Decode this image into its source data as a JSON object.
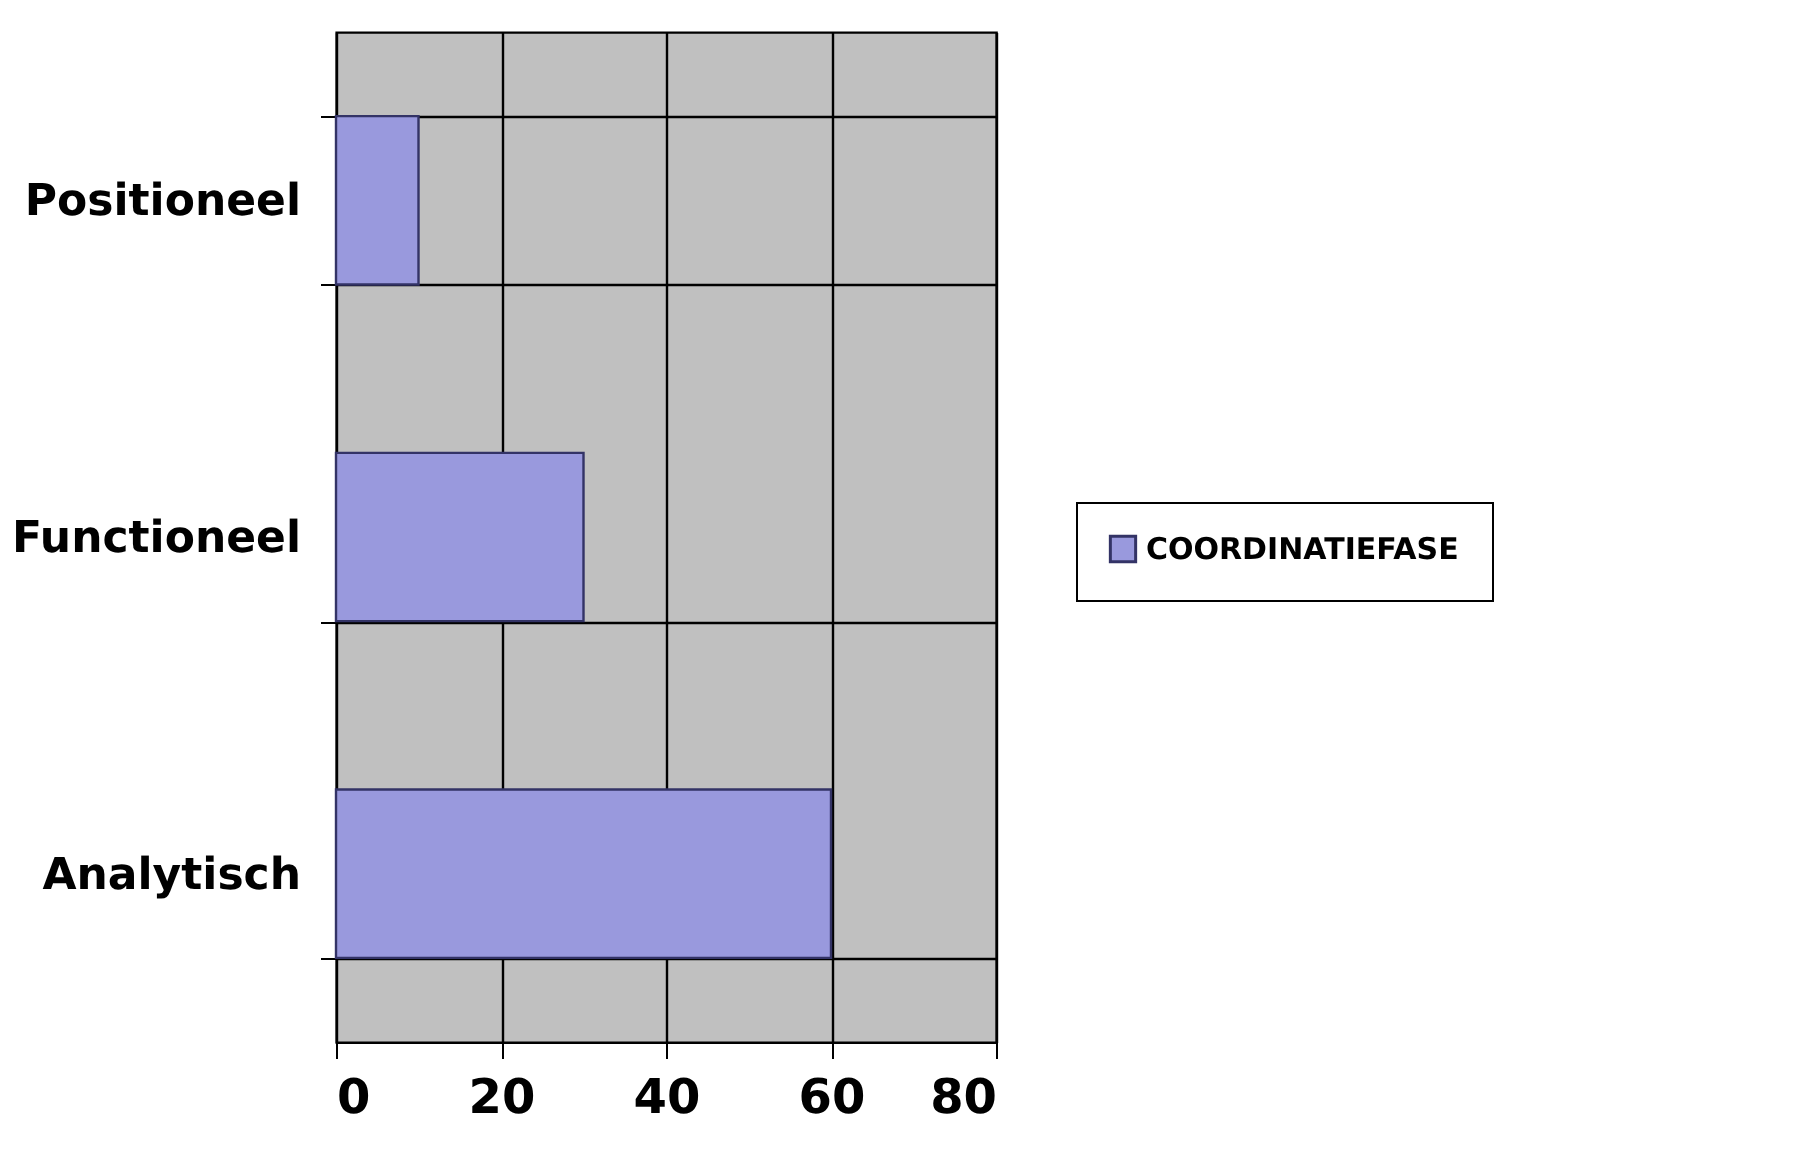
{
  "chart_data": {
    "type": "bar",
    "orientation": "horizontal",
    "categories": [
      "Positioneel",
      "Functioneel",
      "Analytisch"
    ],
    "series": [
      {
        "name": "COORDINATIEFASE",
        "color": "#9999dd",
        "values": [
          10,
          30,
          60
        ]
      }
    ],
    "xlim": [
      0,
      80
    ],
    "xticks": [
      0,
      20,
      40,
      60,
      80
    ],
    "grid": true,
    "legend": "right"
  }
}
